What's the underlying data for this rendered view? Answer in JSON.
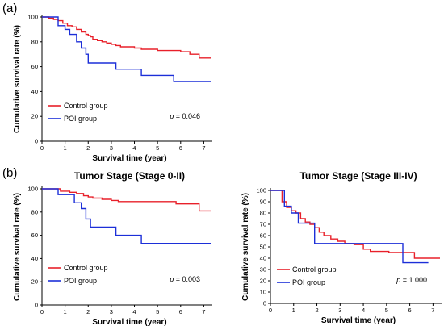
{
  "figure": {
    "panel_a": "(a)",
    "panel_b": "(b)"
  },
  "chart_data": [
    {
      "id": "a",
      "type": "line",
      "step": true,
      "title": "",
      "xlabel": "Survival time (year)",
      "ylabel": "Cumulative survival rate (%)",
      "xlim": [
        0,
        7.3
      ],
      "ylim": [
        0,
        100
      ],
      "xticks": [
        "0",
        "1",
        "2",
        "3",
        "4",
        "5",
        "6",
        "7"
      ],
      "yticks": [
        "0",
        "20",
        "40",
        "60",
        "80",
        "100"
      ],
      "legend_position": "bottom-left",
      "p_value": {
        "prefix": "p",
        "text": " = 0.046"
      },
      "series": [
        {
          "name": "Control group",
          "color": "#e8202a",
          "x": [
            0,
            0.3,
            0.5,
            0.7,
            0.9,
            1.1,
            1.3,
            1.5,
            1.7,
            1.9,
            2.0,
            2.1,
            2.2,
            2.4,
            2.6,
            2.8,
            3.0,
            3.2,
            3.4,
            3.7,
            4.0,
            4.3,
            4.7,
            5.0,
            5.5,
            6.0,
            6.4,
            6.8,
            7.3
          ],
          "y": [
            100,
            99,
            98,
            97,
            95,
            93,
            92,
            90,
            88,
            86,
            85,
            84,
            82,
            81,
            80,
            79,
            78,
            77,
            76,
            76,
            75,
            74,
            74,
            73,
            73,
            72,
            70,
            67,
            67
          ]
        },
        {
          "name": "POI group",
          "color": "#1c2fd8",
          "x": [
            0,
            0.7,
            1.0,
            1.2,
            1.5,
            1.7,
            1.9,
            2.0,
            3.2,
            4.3,
            5.7,
            7.3
          ],
          "y": [
            100,
            93,
            90,
            86,
            80,
            75,
            70,
            63,
            58,
            53,
            48,
            48
          ]
        }
      ]
    },
    {
      "id": "b1",
      "type": "line",
      "step": true,
      "title": "Tumor Stage (Stage 0-II)",
      "xlabel": "Survival time (year)",
      "ylabel": "Cumulative survival rate (%)",
      "xlim": [
        0,
        7.3
      ],
      "ylim": [
        0,
        100
      ],
      "xticks": [
        "0",
        "1",
        "2",
        "3",
        "4",
        "5",
        "6",
        "7"
      ],
      "yticks": [
        "0",
        "20",
        "40",
        "60",
        "80",
        "100"
      ],
      "legend_position": "bottom-left",
      "p_value": {
        "prefix": "p",
        "text": " = 0.003"
      },
      "series": [
        {
          "name": "Control group",
          "color": "#e8202a",
          "x": [
            0,
            0.8,
            1.2,
            1.5,
            1.8,
            2.0,
            2.2,
            2.6,
            3.0,
            3.3,
            5.0,
            5.8,
            6.8,
            7.3
          ],
          "y": [
            100,
            98,
            97,
            96,
            94,
            93,
            92,
            91,
            90,
            89,
            89,
            87,
            81,
            81
          ]
        },
        {
          "name": "POI group",
          "color": "#1c2fd8",
          "x": [
            0,
            0.7,
            1.4,
            1.7,
            1.9,
            2.1,
            3.2,
            4.3,
            7.3
          ],
          "y": [
            100,
            95,
            88,
            83,
            74,
            67,
            60,
            53,
            53
          ]
        }
      ]
    },
    {
      "id": "b2",
      "type": "line",
      "step": true,
      "title": "Tumor Stage (Stage III-IV)",
      "xlabel": "Survival time (year)",
      "ylabel": "Cumulative survival rate (%)",
      "xlim": [
        0,
        7.3
      ],
      "ylim": [
        0,
        100
      ],
      "xticks": [
        "0",
        "1",
        "2",
        "3",
        "4",
        "5",
        "6",
        "7"
      ],
      "yticks": [
        "0",
        "10",
        "20",
        "30",
        "40",
        "50",
        "60",
        "70",
        "80",
        "90",
        "100"
      ],
      "legend_position": "bottom-left",
      "p_value": {
        "prefix": "p",
        "text": " = 1.000"
      },
      "series": [
        {
          "name": "Control group",
          "color": "#e8202a",
          "x": [
            0,
            0.5,
            0.7,
            0.9,
            1.1,
            1.3,
            1.5,
            1.7,
            1.9,
            2.1,
            2.3,
            2.6,
            2.9,
            3.2,
            3.6,
            4.0,
            4.3,
            5.1,
            6.2,
            7.3
          ],
          "y": [
            100,
            90,
            85,
            82,
            80,
            75,
            72,
            70,
            67,
            63,
            60,
            57,
            55,
            53,
            52,
            48,
            46,
            45,
            40,
            40
          ]
        },
        {
          "name": "POI group",
          "color": "#1c2fd8",
          "x": [
            0,
            0.6,
            0.9,
            1.2,
            1.9,
            5.7,
            6.8
          ],
          "y": [
            100,
            86,
            80,
            71,
            53,
            36,
            36
          ]
        }
      ]
    }
  ]
}
